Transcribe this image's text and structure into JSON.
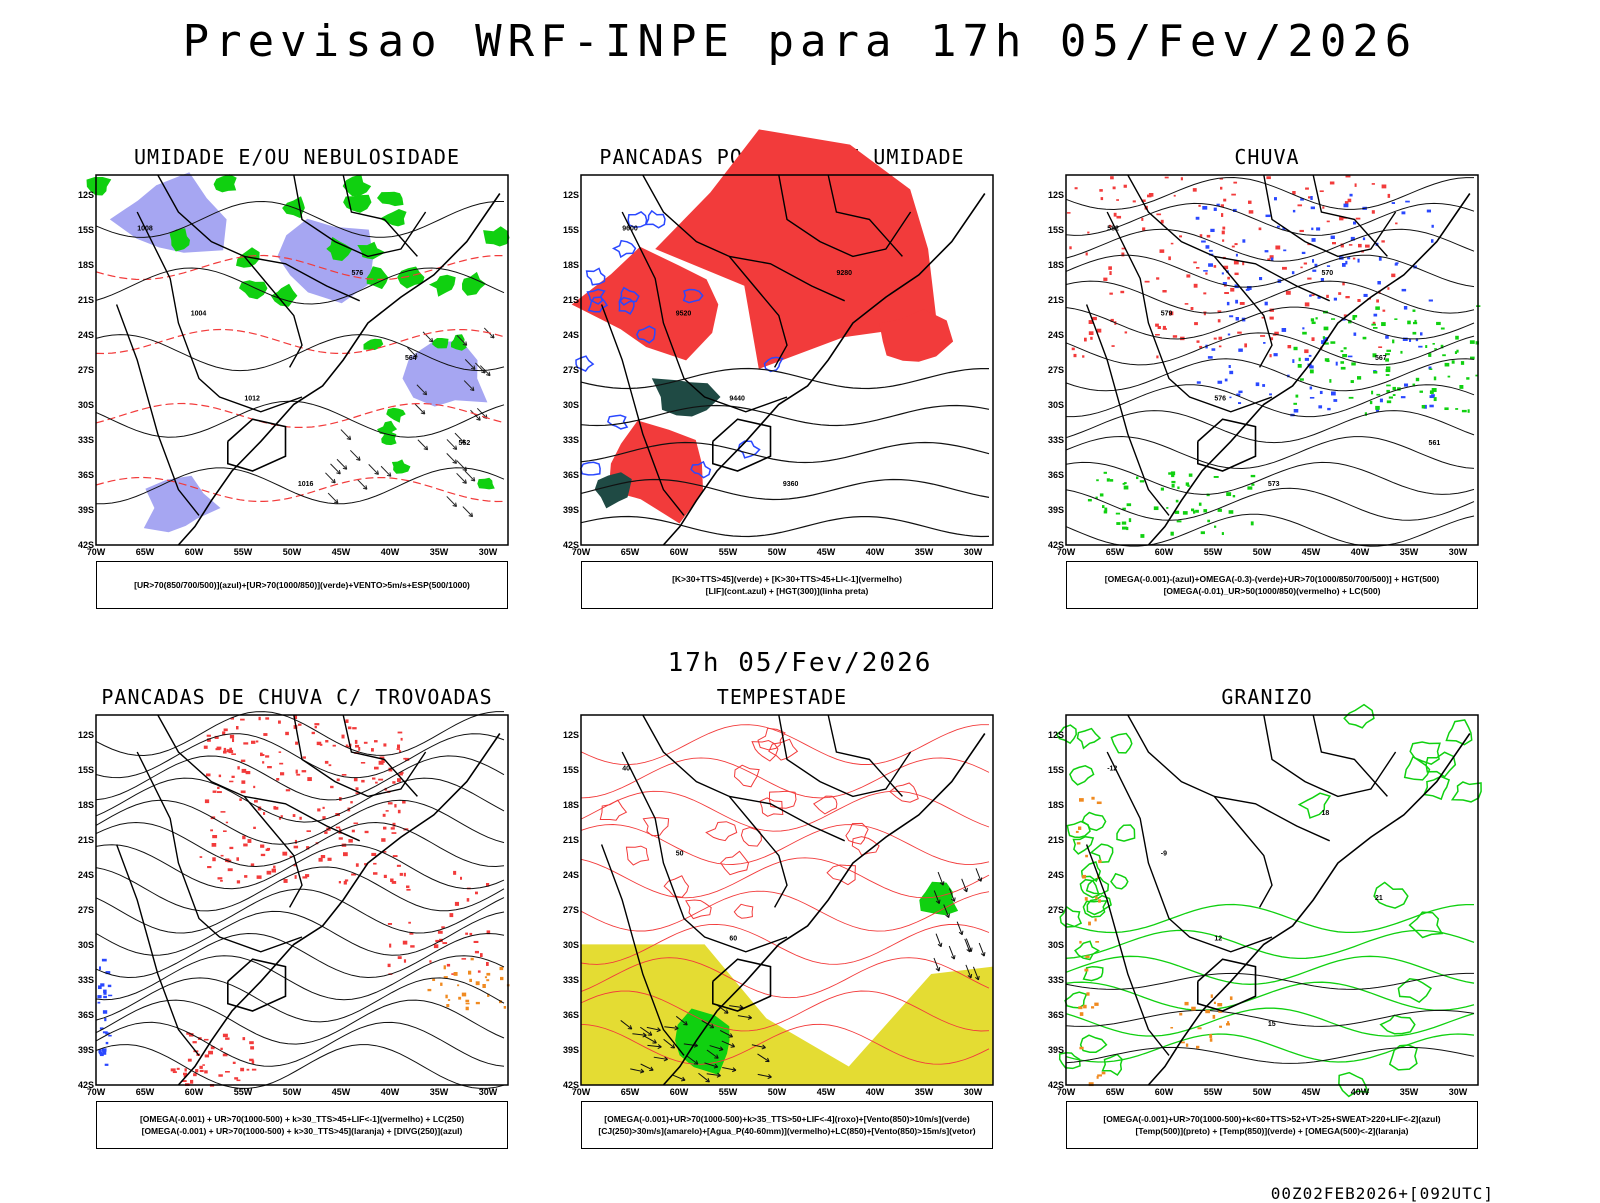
{
  "title": "Previsao WRF-INPE  para 17h 05/Fev/2026",
  "subtitle": "17h 05/Fev/2026",
  "footer": "00Z02FEB2026+[092UTC]",
  "axis": {
    "lat_labels": [
      "12S",
      "15S",
      "18S",
      "21S",
      "24S",
      "27S",
      "30S",
      "33S",
      "36S",
      "39S",
      "42S"
    ],
    "lon_labels": [
      "70W",
      "65W",
      "60W",
      "55W",
      "50W",
      "45W",
      "40W",
      "35W",
      "30W"
    ]
  },
  "colors": {
    "red": "#f23b3b",
    "green": "#10d010",
    "blue": "#2a48ff",
    "lavender": "#a6a6f2",
    "darkgreen": "#1f4a44",
    "yellow": "#e4dc33",
    "orange": "#f08a20"
  },
  "panels": [
    {
      "title": "UMIDADE E/OU NEBULOSIDADE",
      "legend": [
        "[UR>70(850/700/500)](azul)+[UR>70(1000/850)](verde)+VENTO>5m/s+ESP(500/1000)"
      ],
      "contour_labels": [
        "1008",
        "1004",
        "1012",
        "1016",
        "576",
        "564",
        "552"
      ]
    },
    {
      "title": "PANCADAS POR CALOR E UMIDADE",
      "legend": [
        "[K>30+TTS>45](verde) + [K>30+TTS>45+LI<-1](vermelho)",
        "[LIF](cont.azul) + [HGT(300)](linha preta)"
      ],
      "contour_labels": [
        "9600",
        "9520",
        "9440",
        "9360",
        "9280"
      ]
    },
    {
      "title": "CHUVA",
      "legend": [
        "[OMEGA(-0.001)-(azul)+OMEGA(-0.3)-(verde)+UR>70(1000/850/700/500)] + HGT(500)",
        "[OMEGA(-0.01)_UR>50(1000/850)(vermelho) + LC(500)"
      ],
      "contour_labels": [
        "582",
        "579",
        "576",
        "573",
        "570",
        "567",
        "561"
      ]
    },
    {
      "title": "PANCADAS DE CHUVA C/ TROVOADAS",
      "legend": [
        "[OMEGA(-0.001) + UR>70(1000-500) + k>30_TTS>45+LIF<-1](vermelho) + LC(250)",
        "[OMEGA(-0.001) + UR>70(1000-500) + k>30_TTS>45](laranja) + [DIVG(250)](azul)"
      ],
      "contour_labels": []
    },
    {
      "title": "TEMPESTADE",
      "legend": [
        "[OMEGA(-0.001)+UR>70(1000-500)+k>35_TTS>50+LIF<-4](roxo)+[Vento(850)>10m/s](verde)",
        "[CJ(250)>30m/s](amarelo)+[Agua_P(40-60mm)](vermelho)+LC(850)+[Vento(850)>15m/s](vetor)"
      ],
      "contour_labels": [
        "40",
        "50",
        "60"
      ]
    },
    {
      "title": "GRANIZO",
      "legend": [
        "[OMEGA(-0.001)+UR>70(1000-500)+k<60+TTS>52+VT>25+SWEAT>220+LIF<-2](azul)",
        "[Temp(500)](preto) + [Temp(850)](verde) + [OMEGA(500)<-2](laranja)"
      ],
      "contour_labels": [
        "-12",
        "-9",
        "12",
        "15",
        "18",
        "21"
      ]
    }
  ]
}
